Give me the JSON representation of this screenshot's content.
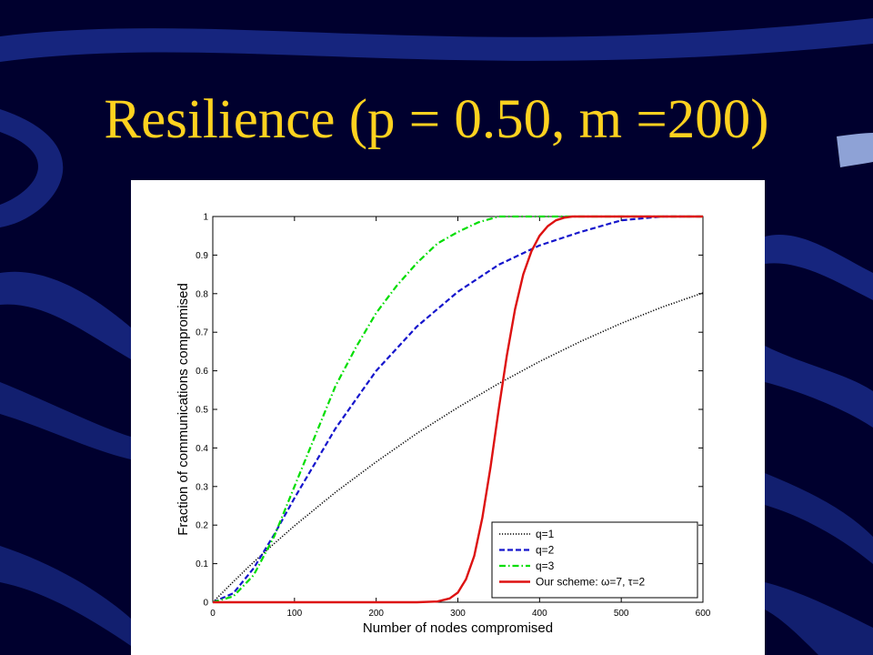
{
  "slide": {
    "title": "Resilience (p = 0.50, m =200)",
    "title_color": "#ffd21f",
    "background_color": "#00002e"
  },
  "chart_data": {
    "type": "line",
    "title": "",
    "xlabel": "Number of nodes compromised",
    "ylabel": "Fraction of communications compromised",
    "xlim": [
      0,
      600
    ],
    "ylim": [
      0,
      1
    ],
    "x_ticks": [
      "0",
      "100",
      "200",
      "300",
      "400",
      "500",
      "600"
    ],
    "y_ticks": [
      "0",
      "0.1",
      "0.2",
      "0.3",
      "0.4",
      "0.5",
      "0.6",
      "0.7",
      "0.8",
      "0.9",
      "1"
    ],
    "grid": false,
    "legend_position": "bottom-right",
    "series": [
      {
        "name": "q=1",
        "color": "#000000",
        "style": "dotted",
        "x": [
          0,
          25,
          50,
          75,
          100,
          150,
          200,
          250,
          300,
          350,
          400,
          450,
          500,
          550,
          600
        ],
        "y": [
          0,
          0.053,
          0.104,
          0.152,
          0.198,
          0.285,
          0.364,
          0.438,
          0.505,
          0.567,
          0.624,
          0.676,
          0.723,
          0.765,
          0.802
        ]
      },
      {
        "name": "q=2",
        "color": "#1515cc",
        "style": "dashed",
        "x": [
          0,
          25,
          50,
          75,
          100,
          125,
          150,
          175,
          200,
          250,
          300,
          350,
          400,
          450,
          500,
          550,
          600
        ],
        "y": [
          0,
          0.023,
          0.088,
          0.175,
          0.27,
          0.36,
          0.45,
          0.525,
          0.6,
          0.715,
          0.805,
          0.875,
          0.925,
          0.96,
          0.99,
          1,
          1
        ]
      },
      {
        "name": "q=3",
        "color": "#00dd00",
        "style": "dashdot",
        "x": [
          0,
          25,
          50,
          75,
          100,
          125,
          150,
          175,
          200,
          225,
          250,
          275,
          300,
          325,
          350,
          400,
          500,
          600
        ],
        "y": [
          0,
          0.015,
          0.07,
          0.17,
          0.3,
          0.43,
          0.56,
          0.66,
          0.75,
          0.82,
          0.88,
          0.93,
          0.96,
          0.985,
          1,
          1,
          1,
          1
        ]
      },
      {
        "name": "Our scheme: ω=7, τ=2",
        "color": "#dd1111",
        "style": "solid",
        "x": [
          0,
          250,
          275,
          290,
          300,
          310,
          320,
          330,
          340,
          350,
          360,
          370,
          380,
          390,
          400,
          410,
          420,
          430,
          440,
          450,
          500,
          600
        ],
        "y": [
          0,
          0,
          0.002,
          0.01,
          0.025,
          0.06,
          0.12,
          0.22,
          0.35,
          0.5,
          0.64,
          0.76,
          0.85,
          0.91,
          0.95,
          0.975,
          0.99,
          0.997,
          1,
          1,
          1,
          1
        ]
      }
    ]
  }
}
